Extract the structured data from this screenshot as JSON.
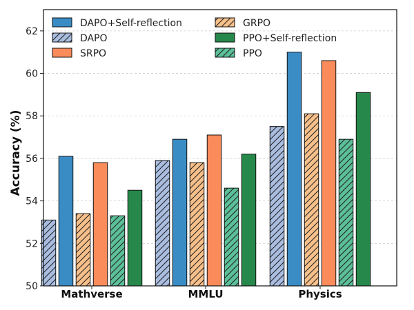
{
  "chart_data": {
    "type": "bar",
    "title": "",
    "xlabel": "",
    "ylabel": "Accuracy (%)",
    "ylim": [
      50,
      63
    ],
    "yticks": [
      50,
      52,
      54,
      56,
      58,
      60,
      62
    ],
    "grid": true,
    "legend_position": "top-left",
    "legend_columns": 2,
    "categories": [
      "Mathverse",
      "MMLU",
      "Physics"
    ],
    "series": [
      {
        "name": "DAPO",
        "values": [
          53.1,
          55.9,
          57.5
        ],
        "color": "#a9bde0",
        "hatched": true
      },
      {
        "name": "DAPO+Self-reflection",
        "values": [
          56.1,
          56.9,
          61.0
        ],
        "color": "#3a8cc4",
        "hatched": false
      },
      {
        "name": "GRPO",
        "values": [
          53.4,
          55.8,
          58.1
        ],
        "color": "#f7c08a",
        "hatched": true
      },
      {
        "name": "SRPO",
        "values": [
          55.8,
          57.1,
          60.6
        ],
        "color": "#fa8b5a",
        "hatched": false
      },
      {
        "name": "PPO",
        "values": [
          53.3,
          54.6,
          56.9
        ],
        "color": "#5bbf9a",
        "hatched": true
      },
      {
        "name": "PPO+Self-reflection",
        "values": [
          54.5,
          56.2,
          59.1
        ],
        "color": "#26884a",
        "hatched": false
      }
    ],
    "legend_order": [
      "DAPO+Self-reflection",
      "DAPO",
      "SRPO",
      "GRPO",
      "PPO+Self-reflection",
      "PPO"
    ]
  }
}
